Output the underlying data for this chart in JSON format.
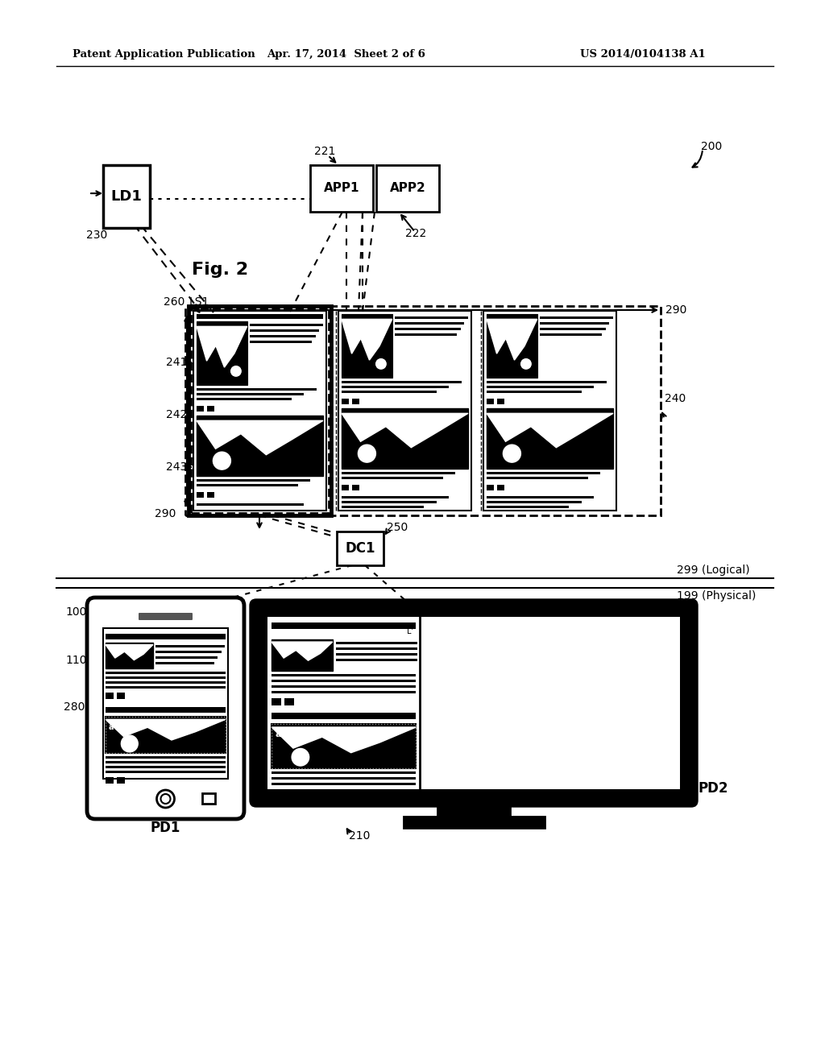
{
  "bg_color": "#ffffff",
  "header_left": "Patent Application Publication",
  "header_mid": "Apr. 17, 2014  Sheet 2 of 6",
  "header_right": "US 2014/0104138 A1",
  "fig_label": "Fig. 2",
  "ref_200": "200",
  "ref_221": "221",
  "ref_222": "222",
  "ref_230": "230",
  "ref_LD1": "LD1",
  "ref_APP1": "APP1",
  "ref_APP2": "APP2",
  "ref_260": "260",
  "ref_LS1": "LS1",
  "ref_241": "241",
  "ref_242": "242",
  "ref_243": "243",
  "ref_290": "290",
  "ref_240": "240",
  "ref_250": "250",
  "ref_DC1": "DC1",
  "ref_299": "299 (Logical)",
  "ref_199": "199 (Physical)",
  "ref_100": "100",
  "ref_110": "110",
  "ref_280": "280",
  "ref_PD1": "PD1",
  "ref_PD2": "PD2",
  "ref_210": "210"
}
